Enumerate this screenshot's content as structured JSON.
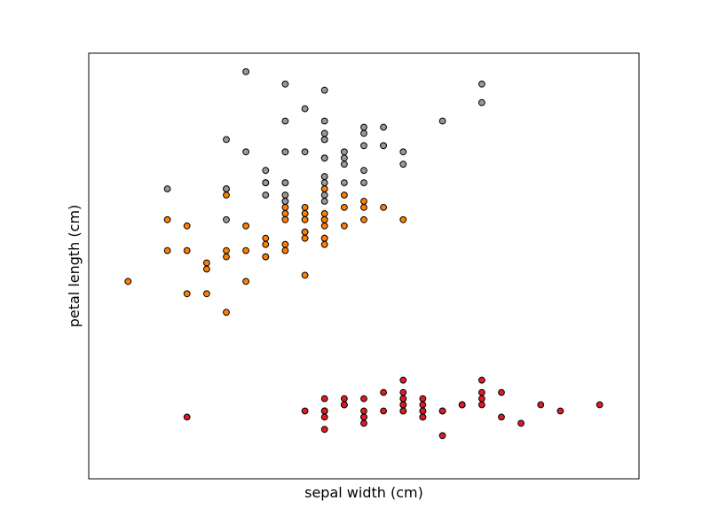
{
  "chart_data": {
    "type": "scatter",
    "title": "",
    "xlabel": "sepal width (cm)",
    "ylabel": "petal length (cm)",
    "xlim": [
      1.8,
      4.6
    ],
    "ylim": [
      0.3,
      7.2
    ],
    "xticks": [],
    "yticks": [],
    "grid": false,
    "legend": "none",
    "series": [
      {
        "color": "#dd1c26",
        "points": [
          [
            3.5,
            1.4
          ],
          [
            3.0,
            1.4
          ],
          [
            3.2,
            1.3
          ],
          [
            3.1,
            1.5
          ],
          [
            3.6,
            1.4
          ],
          [
            3.9,
            1.7
          ],
          [
            3.4,
            1.4
          ],
          [
            3.4,
            1.5
          ],
          [
            2.9,
            1.4
          ],
          [
            3.1,
            1.5
          ],
          [
            3.7,
            1.5
          ],
          [
            3.4,
            1.6
          ],
          [
            3.0,
            1.4
          ],
          [
            3.0,
            1.1
          ],
          [
            4.0,
            1.2
          ],
          [
            4.4,
            1.5
          ],
          [
            3.9,
            1.3
          ],
          [
            3.5,
            1.4
          ],
          [
            3.8,
            1.7
          ],
          [
            3.8,
            1.5
          ],
          [
            3.4,
            1.7
          ],
          [
            3.7,
            1.5
          ],
          [
            3.6,
            1.0
          ],
          [
            3.3,
            1.7
          ],
          [
            3.4,
            1.9
          ],
          [
            3.0,
            1.6
          ],
          [
            3.4,
            1.6
          ],
          [
            3.5,
            1.5
          ],
          [
            3.4,
            1.4
          ],
          [
            3.2,
            1.6
          ],
          [
            3.1,
            1.6
          ],
          [
            3.4,
            1.5
          ],
          [
            4.1,
            1.5
          ],
          [
            4.2,
            1.4
          ],
          [
            3.1,
            1.5
          ],
          [
            3.2,
            1.2
          ],
          [
            3.5,
            1.3
          ],
          [
            3.6,
            1.4
          ],
          [
            3.0,
            1.3
          ],
          [
            3.4,
            1.5
          ],
          [
            3.5,
            1.3
          ],
          [
            2.3,
            1.3
          ],
          [
            3.2,
            1.3
          ],
          [
            3.5,
            1.6
          ],
          [
            3.8,
            1.9
          ],
          [
            3.0,
            1.4
          ],
          [
            3.8,
            1.6
          ],
          [
            3.2,
            1.4
          ],
          [
            3.7,
            1.5
          ],
          [
            3.3,
            1.4
          ]
        ]
      },
      {
        "color": "#ff7f00",
        "points": [
          [
            3.2,
            4.7
          ],
          [
            3.2,
            4.5
          ],
          [
            3.1,
            4.9
          ],
          [
            2.3,
            4.0
          ],
          [
            2.8,
            4.6
          ],
          [
            2.8,
            4.5
          ],
          [
            3.3,
            4.7
          ],
          [
            2.4,
            3.3
          ],
          [
            2.9,
            4.6
          ],
          [
            2.7,
            3.9
          ],
          [
            2.0,
            3.5
          ],
          [
            3.0,
            4.2
          ],
          [
            2.2,
            4.0
          ],
          [
            2.9,
            4.7
          ],
          [
            2.9,
            3.6
          ],
          [
            3.1,
            4.4
          ],
          [
            3.0,
            4.5
          ],
          [
            2.7,
            4.1
          ],
          [
            2.2,
            4.5
          ],
          [
            2.5,
            3.9
          ],
          [
            3.2,
            4.8
          ],
          [
            2.8,
            4.0
          ],
          [
            2.5,
            4.9
          ],
          [
            2.8,
            4.7
          ],
          [
            2.9,
            4.3
          ],
          [
            3.0,
            4.4
          ],
          [
            2.8,
            4.8
          ],
          [
            3.0,
            5.0
          ],
          [
            2.9,
            4.5
          ],
          [
            2.6,
            3.5
          ],
          [
            2.4,
            3.8
          ],
          [
            2.4,
            3.7
          ],
          [
            2.7,
            3.9
          ],
          [
            2.7,
            5.1
          ],
          [
            3.0,
            4.5
          ],
          [
            3.4,
            4.5
          ],
          [
            3.1,
            4.7
          ],
          [
            2.3,
            4.4
          ],
          [
            3.0,
            4.1
          ],
          [
            2.5,
            4.0
          ],
          [
            2.6,
            4.4
          ],
          [
            3.0,
            4.6
          ],
          [
            2.6,
            4.0
          ],
          [
            2.3,
            3.3
          ],
          [
            2.7,
            4.2
          ],
          [
            3.0,
            4.2
          ],
          [
            2.9,
            4.2
          ],
          [
            2.9,
            4.3
          ],
          [
            2.5,
            3.0
          ],
          [
            2.8,
            4.1
          ]
        ]
      },
      {
        "color": "#999999",
        "points": [
          [
            3.3,
            6.0
          ],
          [
            2.7,
            5.1
          ],
          [
            3.0,
            5.9
          ],
          [
            2.9,
            5.6
          ],
          [
            3.0,
            5.8
          ],
          [
            3.0,
            6.6
          ],
          [
            2.5,
            4.5
          ],
          [
            2.9,
            6.3
          ],
          [
            2.5,
            5.8
          ],
          [
            3.6,
            6.1
          ],
          [
            3.2,
            5.1
          ],
          [
            2.7,
            5.3
          ],
          [
            3.0,
            5.5
          ],
          [
            2.5,
            5.0
          ],
          [
            2.8,
            5.1
          ],
          [
            3.2,
            5.3
          ],
          [
            3.0,
            5.5
          ],
          [
            3.8,
            6.7
          ],
          [
            2.6,
            6.9
          ],
          [
            2.2,
            5.0
          ],
          [
            3.2,
            5.7
          ],
          [
            2.8,
            4.9
          ],
          [
            2.8,
            6.7
          ],
          [
            2.7,
            4.9
          ],
          [
            3.3,
            5.7
          ],
          [
            3.2,
            6.0
          ],
          [
            2.8,
            4.8
          ],
          [
            3.0,
            4.9
          ],
          [
            2.8,
            5.6
          ],
          [
            3.0,
            5.8
          ],
          [
            2.8,
            6.1
          ],
          [
            3.8,
            6.4
          ],
          [
            2.8,
            5.6
          ],
          [
            2.8,
            5.1
          ],
          [
            2.6,
            5.6
          ],
          [
            3.0,
            6.1
          ],
          [
            3.4,
            5.6
          ],
          [
            3.1,
            5.5
          ],
          [
            3.0,
            4.8
          ],
          [
            3.1,
            5.4
          ],
          [
            3.1,
            5.6
          ],
          [
            3.1,
            5.1
          ],
          [
            2.7,
            5.1
          ],
          [
            3.2,
            5.9
          ],
          [
            3.3,
            5.7
          ],
          [
            3.0,
            5.2
          ],
          [
            2.5,
            5.0
          ],
          [
            3.0,
            5.2
          ],
          [
            3.4,
            5.4
          ],
          [
            3.0,
            5.1
          ]
        ]
      }
    ]
  }
}
